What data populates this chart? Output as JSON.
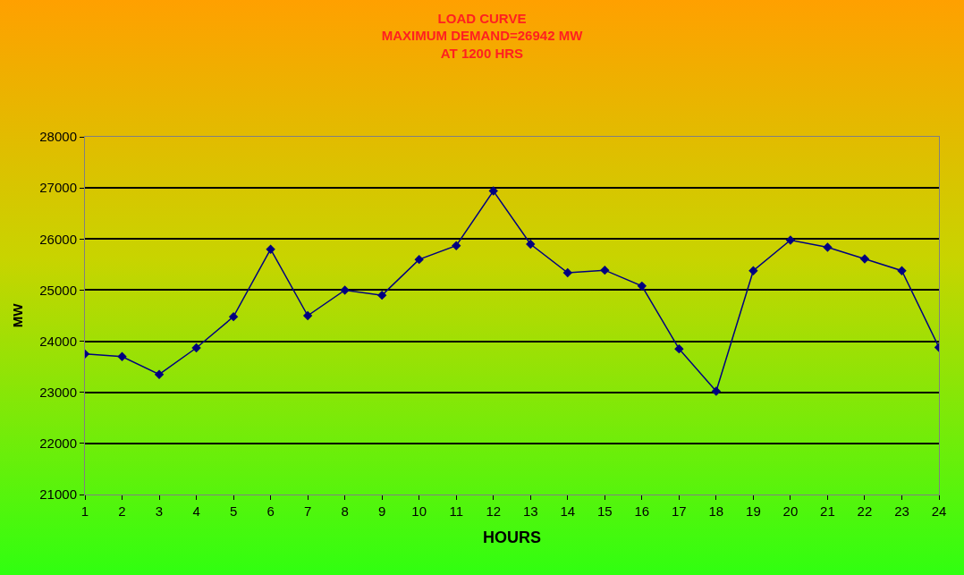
{
  "chart_data": {
    "type": "line",
    "title": "LOAD CURVE\nMAXIMUM DEMAND=26942 MW\nAT 1200 HRS",
    "xlabel": "HOURS",
    "ylabel": "MW",
    "x": [
      1,
      2,
      3,
      4,
      5,
      6,
      7,
      8,
      9,
      10,
      11,
      12,
      13,
      14,
      15,
      16,
      17,
      18,
      19,
      20,
      21,
      22,
      23,
      24
    ],
    "series": [
      {
        "color": "#000080",
        "values": [
          23750,
          23700,
          23350,
          23870,
          24480,
          25800,
          24500,
          25000,
          24900,
          25600,
          25870,
          26942,
          25900,
          25340,
          25390,
          25080,
          23850,
          23020,
          25380,
          25980,
          25840,
          25610,
          25380,
          23880
        ]
      }
    ],
    "xlim": [
      1,
      24
    ],
    "xticks": [
      1,
      2,
      3,
      4,
      5,
      6,
      7,
      8,
      9,
      10,
      11,
      12,
      13,
      14,
      15,
      16,
      17,
      18,
      19,
      20,
      21,
      22,
      23,
      24
    ],
    "ylim": [
      21000,
      28000
    ],
    "yticks": [
      21000,
      22000,
      23000,
      24000,
      25000,
      26000,
      27000,
      28000
    ],
    "grid": "y",
    "legend": false,
    "marker": "diamond",
    "line_style": "solid"
  }
}
